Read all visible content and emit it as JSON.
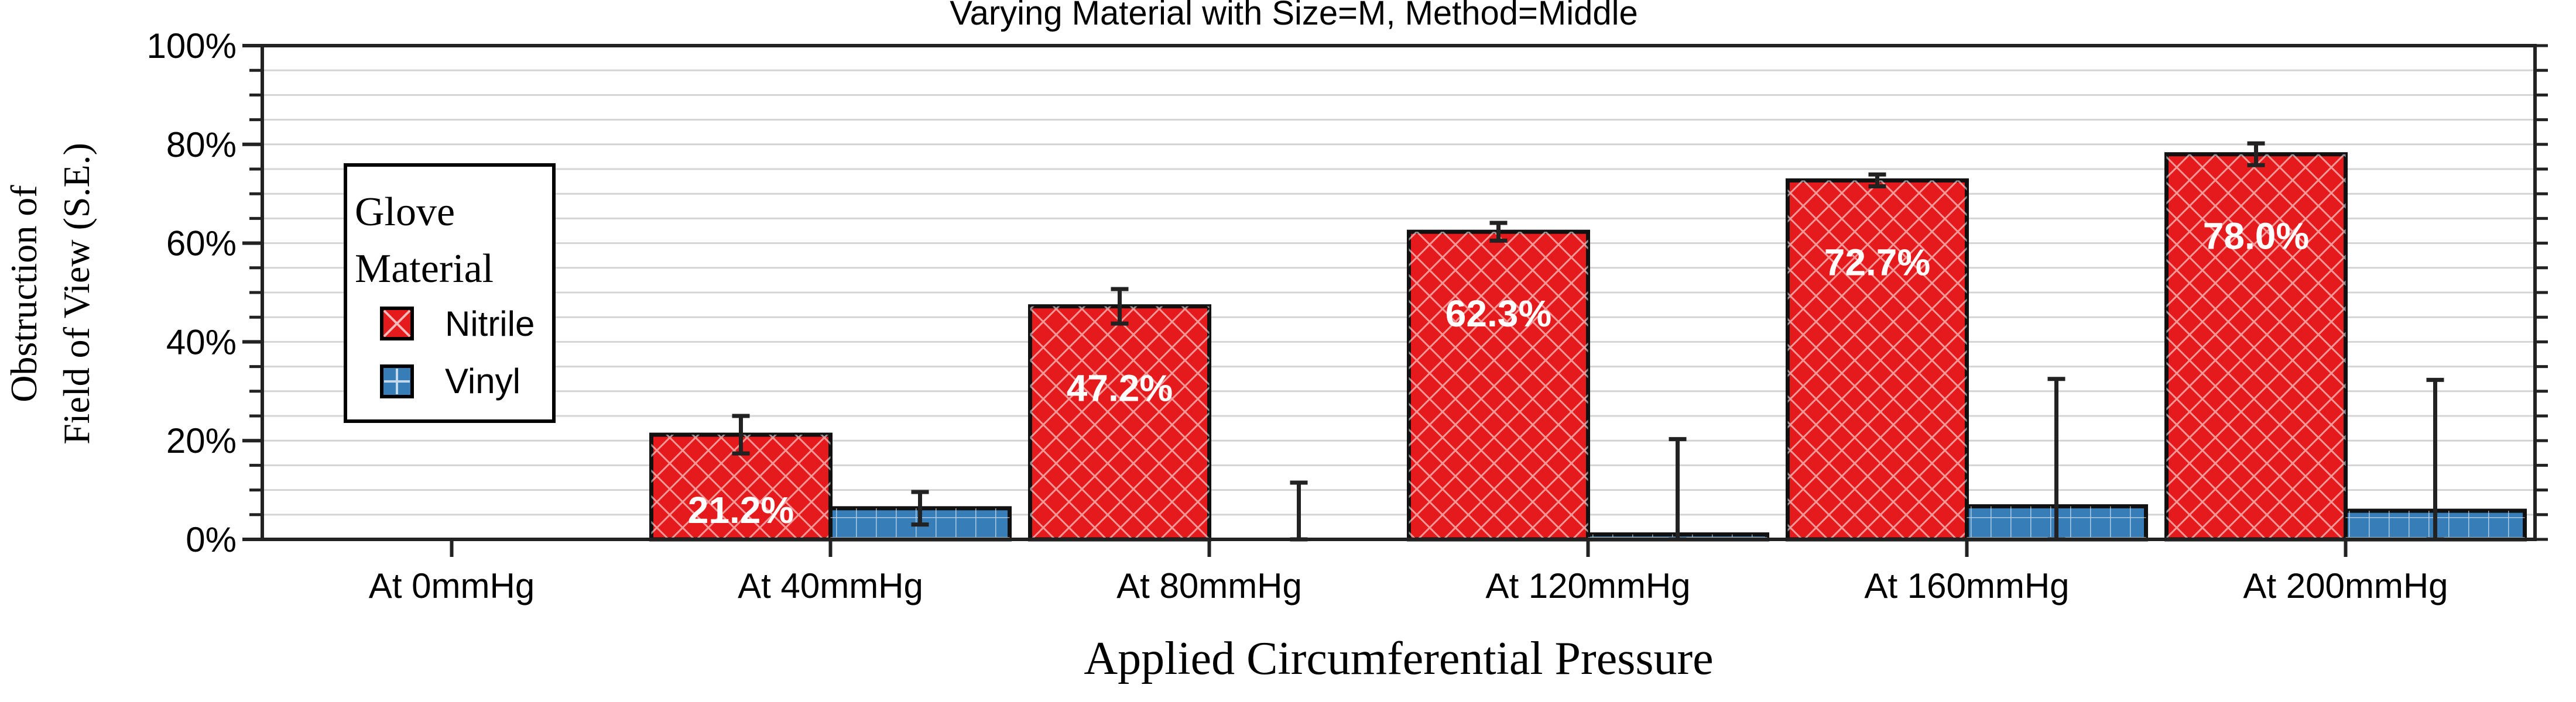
{
  "chart_data": {
    "type": "bar",
    "title": "Varying Material with Size=M, Method=Middle",
    "xlabel": "Applied Circumferential Pressure",
    "ylabel_lines": [
      "Obstruction of",
      "Field of View (S.E.)"
    ],
    "categories": [
      "At 0mmHg",
      "At 40mmHg",
      "At 80mmHg",
      "At 120mmHg",
      "At 160mmHg",
      "At 200mmHg"
    ],
    "ylim": [
      0,
      100
    ],
    "y_ticks": [
      0,
      20,
      40,
      60,
      80,
      100
    ],
    "y_tick_labels": [
      "0%",
      "20%",
      "40%",
      "60%",
      "80%",
      "100%"
    ],
    "grid": true,
    "legend": {
      "title_lines": [
        "Glove",
        "Material"
      ],
      "placement": "upper-left"
    },
    "series": [
      {
        "name": "Nitrile",
        "color": "#e41a1c",
        "pattern": "diagonal-crosshatch",
        "values": [
          0,
          21.2,
          47.2,
          62.3,
          72.7,
          78.0
        ],
        "error": [
          0,
          3.8,
          3.5,
          1.8,
          1.2,
          2.2
        ],
        "data_labels": [
          "",
          "21.2%",
          "47.2%",
          "62.3%",
          "72.7%",
          "78.0%"
        ]
      },
      {
        "name": "Vinyl",
        "color": "#377eb8",
        "pattern": "grid",
        "values": [
          0,
          6.3,
          0,
          1.0,
          6.7,
          5.8
        ],
        "error": [
          0,
          3.3,
          11.5,
          19.3,
          25.8,
          26.5
        ],
        "data_labels": [
          "",
          "",
          "",
          "",
          "",
          ""
        ]
      }
    ]
  }
}
